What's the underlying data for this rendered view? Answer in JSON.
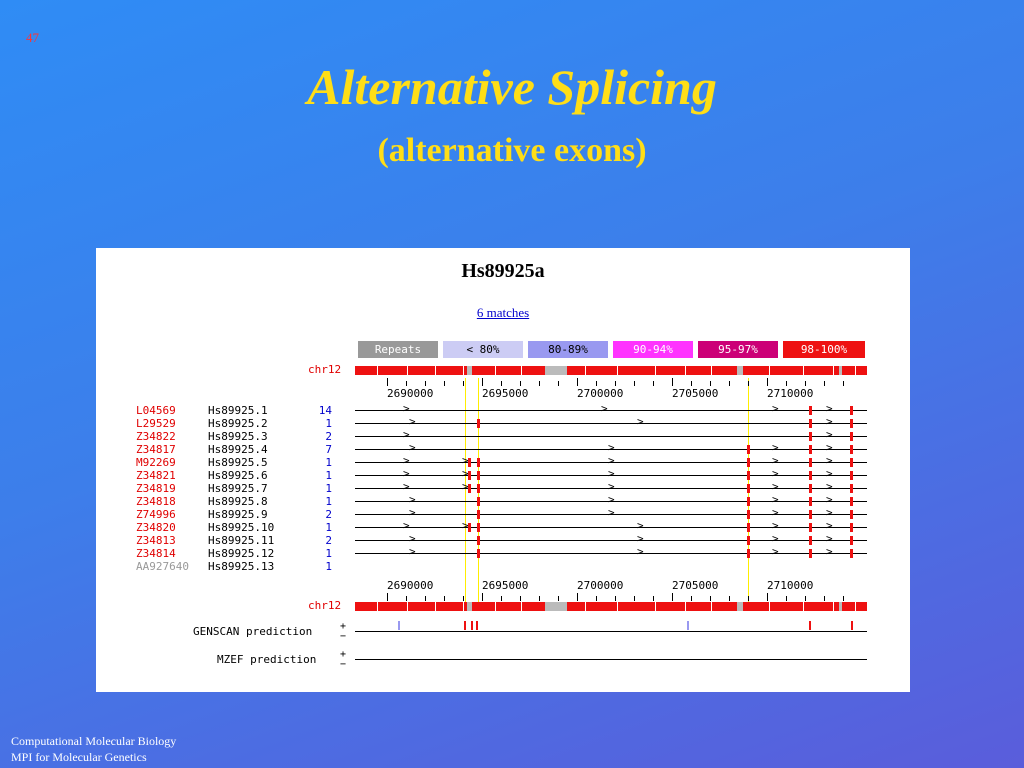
{
  "slide_number": "47",
  "title": "Alternative Splicing",
  "subtitle": "(alternative exons)",
  "footer": {
    "line1": "Computational Molecular Biology",
    "line2": "MPI for Molecular Genetics"
  },
  "panel": {
    "title": "Hs89925a",
    "matches_link": "6 matches",
    "legend": [
      {
        "label": "Repeats",
        "bg": "#999999",
        "fg": "#ffffff"
      },
      {
        "label": "< 80%",
        "bg": "#ccccf4",
        "fg": "#000000"
      },
      {
        "label": "80-89%",
        "bg": "#9999f0",
        "fg": "#000000"
      },
      {
        "label": "90-94%",
        "bg": "#ff33ff",
        "fg": "#ffffff"
      },
      {
        "label": "95-97%",
        "bg": "#cc0077",
        "fg": "#ffffff"
      },
      {
        "label": "98-100%",
        "bg": "#ee1111",
        "fg": "#ffffff"
      }
    ],
    "chr_label": "chr12",
    "axis_labels": [
      "2690000",
      "2695000",
      "2700000",
      "2705000",
      "2710000"
    ],
    "rows": [
      {
        "acc": "L04569",
        "cluster": "Hs89925.1",
        "count": "14"
      },
      {
        "acc": "L29529",
        "cluster": "Hs89925.2",
        "count": "1"
      },
      {
        "acc": "Z34822",
        "cluster": "Hs89925.3",
        "count": "2"
      },
      {
        "acc": "Z34817",
        "cluster": "Hs89925.4",
        "count": "7"
      },
      {
        "acc": "M92269",
        "cluster": "Hs89925.5",
        "count": "1"
      },
      {
        "acc": "Z34821",
        "cluster": "Hs89925.6",
        "count": "1"
      },
      {
        "acc": "Z34819",
        "cluster": "Hs89925.7",
        "count": "1"
      },
      {
        "acc": "Z34818",
        "cluster": "Hs89925.8",
        "count": "1"
      },
      {
        "acc": "Z74996",
        "cluster": "Hs89925.9",
        "count": "2"
      },
      {
        "acc": "Z34820",
        "cluster": "Hs89925.10",
        "count": "1"
      },
      {
        "acc": "Z34813",
        "cluster": "Hs89925.11",
        "count": "2"
      },
      {
        "acc": "Z34814",
        "cluster": "Hs89925.12",
        "count": "1"
      },
      {
        "acc": "AA927640",
        "cluster": "Hs89925.13",
        "count": "1"
      }
    ],
    "genscan_label": "GENSCAN prediction",
    "mzef_label": "MZEF prediction",
    "plus": "+",
    "minus": "−"
  }
}
